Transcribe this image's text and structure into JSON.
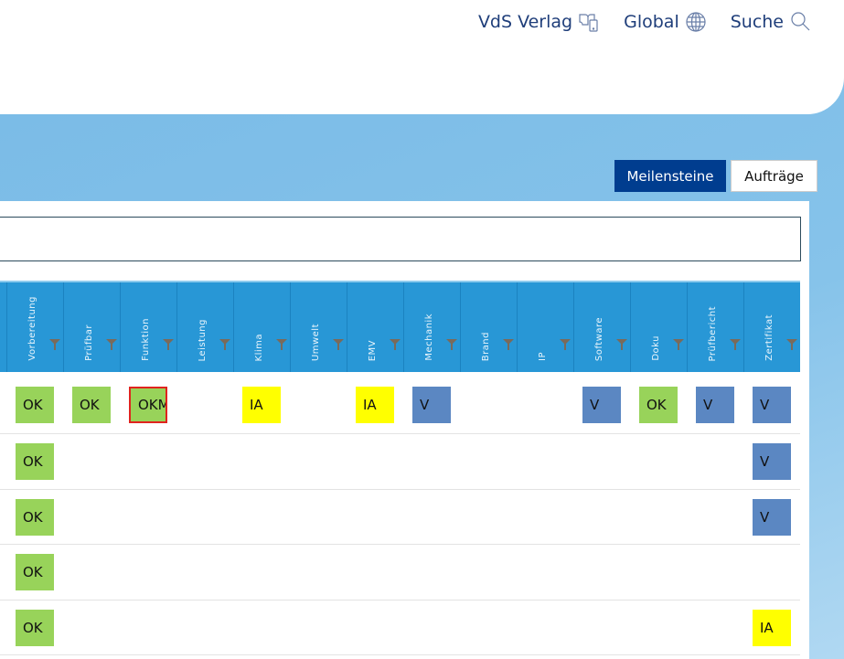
{
  "header": {
    "links": [
      {
        "label": "VdS Verlag",
        "icon": "book-tablet-icon"
      },
      {
        "label": "Global",
        "icon": "globe-icon"
      },
      {
        "label": "Suche",
        "icon": "search-icon"
      }
    ]
  },
  "tabs": [
    {
      "label": "Meilensteine",
      "active": true
    },
    {
      "label": "Aufträge",
      "active": false
    }
  ],
  "search": {
    "value": "",
    "placeholder": ""
  },
  "table": {
    "columns": [
      "Vorbereitung",
      "Prüfbar",
      "Funktion",
      "Leistung",
      "Klima",
      "Umwelt",
      "EMV",
      "Mechanik",
      "Brand",
      "IP",
      "Software",
      "Doku",
      "Prüfbericht",
      "Zertifikat"
    ],
    "rows": [
      [
        "OK",
        "OK",
        "OKM",
        "",
        "IA",
        "",
        "IA",
        "V",
        "",
        "",
        "V",
        "OK",
        "V",
        "V"
      ],
      [
        "OK",
        "",
        "",
        "",
        "",
        "",
        "",
        "",
        "",
        "",
        "",
        "",
        "",
        "V"
      ],
      [
        "OK",
        "",
        "",
        "",
        "",
        "",
        "",
        "",
        "",
        "",
        "",
        "",
        "",
        "V"
      ],
      [
        "OK",
        "",
        "",
        "",
        "",
        "",
        "",
        "",
        "",
        "",
        "",
        "",
        "",
        ""
      ],
      [
        "OK",
        "",
        "",
        "",
        "",
        "",
        "",
        "",
        "",
        "",
        "",
        "",
        "",
        "IA"
      ]
    ],
    "selected_cell": {
      "row": 0,
      "column": "Funktion"
    }
  },
  "colors": {
    "OK": "#98d35a",
    "IA": "#ffff00",
    "V": "#5b87c2",
    "header": "#2897d6",
    "active_tab": "#003d8f",
    "selection": "#e0231e"
  }
}
